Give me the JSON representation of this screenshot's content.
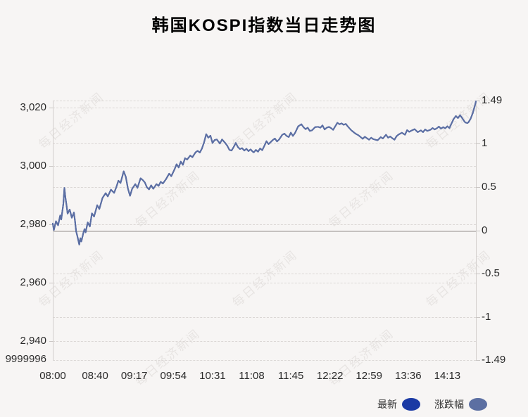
{
  "title": "韩国KOSPI指数当日走势图",
  "watermark": {
    "text": "每日经济新闻"
  },
  "legend": [
    {
      "label": "最新",
      "color": "#1b3aa4"
    },
    {
      "label": "涨跌幅",
      "color": "#5c6fa2"
    }
  ],
  "colors": {
    "background": "#f7f5f4",
    "grid": "#dbd7d5",
    "zero_line": "#c5c1bf",
    "axis_spine": "#d3cfcd",
    "text": "#2a2a2a",
    "title_text": "#000000",
    "latest_line": "#1b3aa4",
    "change_line": "#5c6fa2",
    "watermark_text": "#9a918c"
  },
  "chart_data": {
    "type": "line",
    "title": "韩国KOSPI指数当日走势图",
    "grid": "dashed horizontal at every left and right axis tick",
    "legend_position": "bottom-right",
    "x_axis": {
      "total_minutes": 400,
      "ticks": [
        {
          "label": "08:00",
          "min": 0
        },
        {
          "label": "08:40",
          "min": 40
        },
        {
          "label": "09:17",
          "min": 77
        },
        {
          "label": "09:54",
          "min": 114
        },
        {
          "label": "10:31",
          "min": 151
        },
        {
          "label": "11:08",
          "min": 188
        },
        {
          "label": "11:45",
          "min": 225
        },
        {
          "label": "12:22",
          "min": 262
        },
        {
          "label": "12:59",
          "min": 299
        },
        {
          "label": "13:36",
          "min": 336
        },
        {
          "label": "14:13",
          "min": 373
        }
      ]
    },
    "y_left": {
      "range": [
        2933.5,
        3022.3
      ],
      "ticks": [
        {
          "label": "3,020",
          "value": 3020
        },
        {
          "label": "3,000",
          "value": 3000
        },
        {
          "label": "2,980",
          "value": 2980
        },
        {
          "label": "2,960",
          "value": 2960
        },
        {
          "label": "2,940",
          "value": 2940
        }
      ],
      "bottom_label": "9999996"
    },
    "y_right": {
      "range": [
        -1.49,
        1.49
      ],
      "ticks": [
        {
          "label": "1.49",
          "value": 1.49
        },
        {
          "label": "1",
          "value": 1
        },
        {
          "label": "0.5",
          "value": 0.5
        },
        {
          "label": "0",
          "value": 0
        },
        {
          "label": "-0.5",
          "value": -0.5
        },
        {
          "label": "-1",
          "value": -1
        },
        {
          "label": "-1.49",
          "value": -1.49
        }
      ],
      "zero_line": 0
    },
    "prev_close": 2977.9,
    "series": [
      {
        "name": "最新",
        "axis": "left",
        "color": "#1b3aa4",
        "note": "index level, drawn beneath; identical curve to 涨跌幅"
      },
      {
        "name": "涨跌幅",
        "axis": "right",
        "color": "#5c6fa2",
        "note": "percent change vs prev_close, overlaps 最新 exactly (visible line)"
      }
    ],
    "points": [
      [
        0,
        2980.2
      ],
      [
        1,
        2978.0
      ],
      [
        3,
        2981.0
      ],
      [
        5,
        2979.6
      ],
      [
        7,
        2983.0
      ],
      [
        8,
        2981.6
      ],
      [
        10,
        2987.0
      ],
      [
        11,
        2992.4
      ],
      [
        12,
        2989.0
      ],
      [
        13,
        2986.5
      ],
      [
        14,
        2983.6
      ],
      [
        16,
        2985.0
      ],
      [
        18,
        2982.2
      ],
      [
        20,
        2984.0
      ],
      [
        21,
        2981.0
      ],
      [
        22,
        2977.6
      ],
      [
        23,
        2976.2
      ],
      [
        25,
        2973.0
      ],
      [
        26,
        2975.2
      ],
      [
        27,
        2974.1
      ],
      [
        29,
        2977.2
      ],
      [
        30,
        2978.3
      ],
      [
        31,
        2977.2
      ],
      [
        33,
        2980.6
      ],
      [
        35,
        2979.2
      ],
      [
        37,
        2983.7
      ],
      [
        39,
        2982.6
      ],
      [
        42,
        2986.5
      ],
      [
        44,
        2985.2
      ],
      [
        47,
        2989.0
      ],
      [
        50,
        2990.6
      ],
      [
        52,
        2989.5
      ],
      [
        55,
        2991.8
      ],
      [
        58,
        2990.7
      ],
      [
        60,
        2992.6
      ],
      [
        62,
        2994.9
      ],
      [
        64,
        2994.1
      ],
      [
        67,
        2998.1
      ],
      [
        69,
        2996.2
      ],
      [
        71,
        2992.2
      ],
      [
        73,
        2989.7
      ],
      [
        75,
        2992.1
      ],
      [
        78,
        2993.7
      ],
      [
        80,
        2992.4
      ],
      [
        83,
        2995.7
      ],
      [
        85,
        2995.1
      ],
      [
        87,
        2994.3
      ],
      [
        89,
        2992.6
      ],
      [
        91,
        2991.9
      ],
      [
        93,
        2993.3
      ],
      [
        95,
        2992.1
      ],
      [
        98,
        2993.7
      ],
      [
        100,
        2993.1
      ],
      [
        102,
        2994.5
      ],
      [
        104,
        2993.9
      ],
      [
        107,
        2995.4
      ],
      [
        110,
        2997.3
      ],
      [
        112,
        2996.4
      ],
      [
        115,
        2998.7
      ],
      [
        117,
        3000.5
      ],
      [
        119,
        2999.4
      ],
      [
        121,
        3001.4
      ],
      [
        123,
        3000.3
      ],
      [
        125,
        3002.6
      ],
      [
        127,
        3002.1
      ],
      [
        130,
        3003.5
      ],
      [
        132,
        3002.9
      ],
      [
        135,
        3004.6
      ],
      [
        137,
        3005.1
      ],
      [
        139,
        3004.5
      ],
      [
        141,
        3005.9
      ],
      [
        143,
        3008.0
      ],
      [
        145,
        3010.8
      ],
      [
        147,
        3009.6
      ],
      [
        149,
        3010.3
      ],
      [
        151,
        3007.8
      ],
      [
        153,
        3008.8
      ],
      [
        155,
        3009.0
      ],
      [
        158,
        3007.6
      ],
      [
        160,
        3009.0
      ],
      [
        163,
        3007.8
      ],
      [
        165,
        3006.8
      ],
      [
        167,
        3005.4
      ],
      [
        169,
        3005.2
      ],
      [
        171,
        3006.4
      ],
      [
        173,
        3007.8
      ],
      [
        175,
        3006.4
      ],
      [
        177,
        3005.7
      ],
      [
        179,
        3006.0
      ],
      [
        181,
        3005.2
      ],
      [
        183,
        3005.8
      ],
      [
        185,
        3005.0
      ],
      [
        187,
        3005.6
      ],
      [
        189,
        3004.8
      ],
      [
        190,
        3004.6
      ],
      [
        192,
        3005.4
      ],
      [
        194,
        3004.8
      ],
      [
        196,
        3005.9
      ],
      [
        198,
        3005.3
      ],
      [
        200,
        3006.8
      ],
      [
        202,
        3008.4
      ],
      [
        204,
        3007.4
      ],
      [
        206,
        3008.1
      ],
      [
        208,
        3008.8
      ],
      [
        210,
        3009.3
      ],
      [
        212,
        3008.3
      ],
      [
        214,
        3009.0
      ],
      [
        217,
        3010.6
      ],
      [
        219,
        3011.0
      ],
      [
        221,
        3010.2
      ],
      [
        223,
        3009.8
      ],
      [
        225,
        3011.3
      ],
      [
        227,
        3010.2
      ],
      [
        229,
        3011.2
      ],
      [
        232,
        3013.5
      ],
      [
        235,
        3014.2
      ],
      [
        237,
        3013.2
      ],
      [
        239,
        3012.5
      ],
      [
        241,
        3013.0
      ],
      [
        243,
        3011.9
      ],
      [
        245,
        3012.1
      ],
      [
        248,
        3013.2
      ],
      [
        251,
        3013.3
      ],
      [
        253,
        3013.0
      ],
      [
        255,
        3013.8
      ],
      [
        257,
        3012.4
      ],
      [
        259,
        3013.0
      ],
      [
        261,
        3013.3
      ],
      [
        263,
        3012.9
      ],
      [
        265,
        3012.3
      ],
      [
        267,
        3013.5
      ],
      [
        269,
        3014.7
      ],
      [
        271,
        3014.2
      ],
      [
        273,
        3014.5
      ],
      [
        275,
        3014.0
      ],
      [
        277,
        3014.3
      ],
      [
        279,
        3013.4
      ],
      [
        282,
        3012.2
      ],
      [
        285,
        3011.3
      ],
      [
        287,
        3010.8
      ],
      [
        289,
        3010.4
      ],
      [
        291,
        3009.8
      ],
      [
        293,
        3009.2
      ],
      [
        295,
        3009.9
      ],
      [
        297,
        3009.4
      ],
      [
        299,
        3008.9
      ],
      [
        301,
        3009.6
      ],
      [
        303,
        3009.1
      ],
      [
        305,
        3008.9
      ],
      [
        307,
        3008.7
      ],
      [
        309,
        3009.4
      ],
      [
        310,
        3009.8
      ],
      [
        312,
        3009.3
      ],
      [
        315,
        3010.6
      ],
      [
        317,
        3009.6
      ],
      [
        319,
        3010.0
      ],
      [
        321,
        3009.4
      ],
      [
        323,
        3008.9
      ],
      [
        325,
        3010.1
      ],
      [
        327,
        3010.7
      ],
      [
        330,
        3011.3
      ],
      [
        333,
        3010.6
      ],
      [
        335,
        3012.2
      ],
      [
        337,
        3011.6
      ],
      [
        339,
        3012.0
      ],
      [
        342,
        3012.5
      ],
      [
        345,
        3011.5
      ],
      [
        348,
        3012.1
      ],
      [
        350,
        3011.5
      ],
      [
        352,
        3012.4
      ],
      [
        354,
        3011.9
      ],
      [
        357,
        3012.3
      ],
      [
        359,
        3012.9
      ],
      [
        361,
        3012.4
      ],
      [
        363,
        3012.8
      ],
      [
        365,
        3013.4
      ],
      [
        367,
        3012.7
      ],
      [
        369,
        3013.2
      ],
      [
        371,
        3012.8
      ],
      [
        373,
        3013.5
      ],
      [
        375,
        3012.9
      ],
      [
        377,
        3014.5
      ],
      [
        379,
        3016.0
      ],
      [
        381,
        3017.0
      ],
      [
        383,
        3016.3
      ],
      [
        385,
        3017.3
      ],
      [
        387,
        3016.3
      ],
      [
        389,
        3015.2
      ],
      [
        390,
        3014.8
      ],
      [
        392,
        3014.6
      ],
      [
        393,
        3014.9
      ],
      [
        395,
        3016.1
      ],
      [
        397,
        3018.0
      ],
      [
        398,
        3019.3
      ],
      [
        399,
        3020.5
      ],
      [
        400,
        3022.0
      ]
    ]
  }
}
